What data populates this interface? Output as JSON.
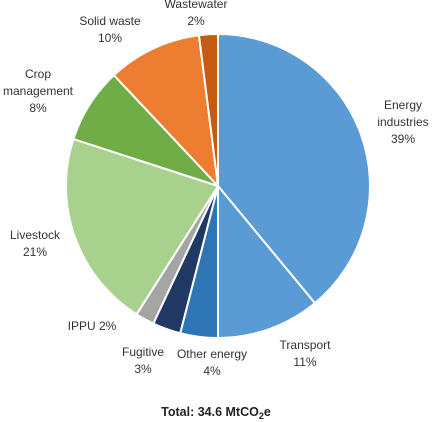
{
  "chart_data": {
    "type": "pie",
    "slices": [
      {
        "name": "Energy industries",
        "name_lines": [
          "Energy",
          "industries"
        ],
        "value": 39,
        "label": "39%",
        "color": "#5b9bd5"
      },
      {
        "name": "Transport",
        "name_lines": [
          "Transport"
        ],
        "value": 11,
        "label": "11%",
        "color": "#5b9bd5"
      },
      {
        "name": "Other energy",
        "name_lines": [
          "Other energy"
        ],
        "value": 4,
        "label": "4%",
        "color": "#2e75b6"
      },
      {
        "name": "Fugitive",
        "name_lines": [
          "Fugitive"
        ],
        "value": 3,
        "label": "3%",
        "color": "#1f3864"
      },
      {
        "name": "IPPU",
        "name_lines": [
          "IPPU 2%"
        ],
        "value": 2,
        "label": "",
        "color": "#a5a5a5"
      },
      {
        "name": "Livestock",
        "name_lines": [
          "Livestock"
        ],
        "value": 21,
        "label": "21%",
        "color": "#a9d18e"
      },
      {
        "name": "Crop management",
        "name_lines": [
          "Crop",
          "management"
        ],
        "value": 8,
        "label": "8%",
        "color": "#70ad47"
      },
      {
        "name": "Solid waste",
        "name_lines": [
          "Solid waste"
        ],
        "value": 10,
        "label": "10%",
        "color": "#ed7d31"
      },
      {
        "name": "Wastewater",
        "name_lines": [
          "Wastewater"
        ],
        "value": 2,
        "label": "2%",
        "color": "#c55a11"
      }
    ],
    "total": {
      "prefix": "Total: 34.6 MtCO",
      "subscript": "2",
      "suffix": "e"
    },
    "legend": "none"
  }
}
